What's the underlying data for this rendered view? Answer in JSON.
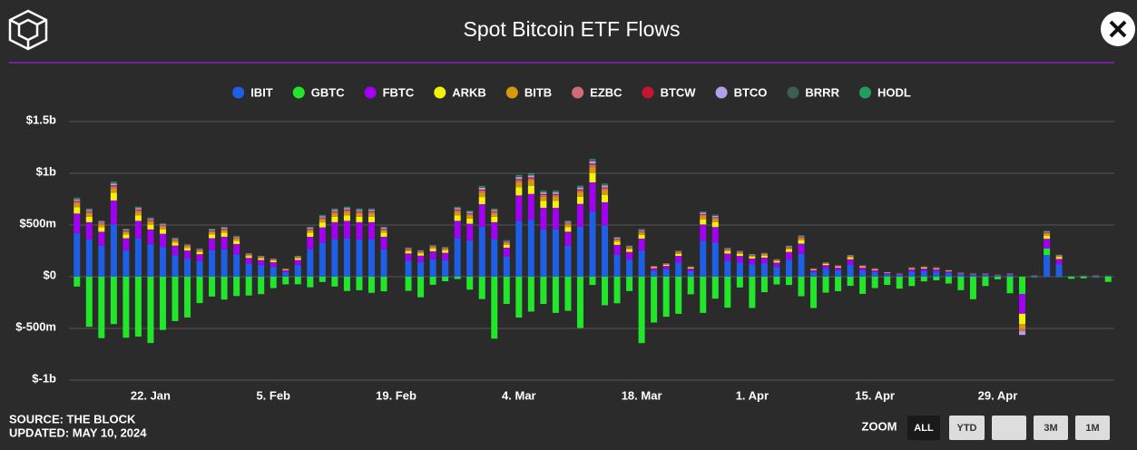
{
  "chart_data": {
    "type": "bar",
    "stacked": true,
    "title": "Spot Bitcoin ETF Flows",
    "categories": [
      null,
      null,
      null,
      null,
      null,
      null,
      "22. Jan",
      null,
      null,
      null,
      null,
      null,
      null,
      null,
      null,
      null,
      "5. Feb",
      null,
      null,
      null,
      null,
      null,
      null,
      null,
      null,
      null,
      "19. Feb",
      null,
      null,
      null,
      null,
      null,
      null,
      null,
      null,
      null,
      "4. Mar",
      null,
      null,
      null,
      null,
      null,
      null,
      null,
      null,
      null,
      "18. Mar",
      null,
      null,
      null,
      null,
      null,
      null,
      null,
      null,
      "1. Apr",
      null,
      null,
      null,
      null,
      null,
      null,
      null,
      null,
      null,
      "15. Apr",
      null,
      null,
      null,
      null,
      null,
      null,
      null,
      null,
      null,
      "29. Apr",
      null,
      null,
      null,
      null,
      null,
      null,
      null,
      null,
      null
    ],
    "ylim": [
      -1000,
      1500
    ],
    "yticks": [
      {
        "value": -1000,
        "label": "$-1b"
      },
      {
        "value": -500,
        "label": "$-500m"
      },
      {
        "value": 0,
        "label": "$0"
      },
      {
        "value": 500,
        "label": "$500m"
      },
      {
        "value": 1000,
        "label": "$1b"
      },
      {
        "value": 1500,
        "label": "$1.5b"
      }
    ],
    "grid": true,
    "series": [
      {
        "name": "IBIT",
        "color": "#1f5fe6",
        "values": [
          420,
          362,
          299,
          507,
          256,
          371,
          314,
          285,
          207,
          174,
          150,
          256,
          265,
          217,
          125,
          111,
          96,
          43,
          111,
          265,
          328,
          362,
          371,
          362,
          362,
          265,
          null,
          155,
          140,
          169,
          159,
          371,
          352,
          482,
          362,
          193,
          540,
          550,
          458,
          458,
          299,
          484,
          627,
          495,
          212,
          165,
          253,
          58,
          72,
          138,
          55,
          347,
          330,
          154,
          138,
          121,
          127,
          94,
          165,
          220,
          44,
          77,
          61,
          116,
          61,
          44,
          25,
          17,
          50,
          55,
          50,
          36,
          22,
          17,
          17,
          11,
          17,
          0,
          8,
          209,
          118,
          3,
          6,
          8,
          6
        ]
      },
      {
        "name": "GBTC",
        "color": "#22e62a",
        "values": [
          -95,
          -484,
          -594,
          -458,
          -590,
          -579,
          -641,
          -515,
          -429,
          -394,
          -255,
          -192,
          -221,
          -187,
          -182,
          -169,
          -110,
          -74,
          -73,
          -102,
          -51,
          -95,
          -138,
          -131,
          -156,
          -141,
          null,
          -137,
          -199,
          -78,
          -44,
          -22,
          -125,
          -216,
          -599,
          -263,
          -395,
          -337,
          -263,
          -350,
          -330,
          -495,
          -80,
          -276,
          -257,
          -139,
          -642,
          -443,
          -387,
          -359,
          -170,
          -350,
          -212,
          -299,
          -104,
          -302,
          -150,
          -75,
          -80,
          -189,
          -303,
          -154,
          -140,
          -88,
          -166,
          -110,
          -79,
          -115,
          -90,
          -45,
          -35,
          -66,
          -130,
          -218,
          -90,
          -25,
          -160,
          -167,
          -5,
          63,
          -2,
          -20,
          -15,
          -5,
          -50
        ]
      },
      {
        "name": "FBTC",
        "color": "#a100f2",
        "values": [
          191,
          165,
          136,
          230,
          116,
          169,
          143,
          130,
          94,
          79,
          68,
          116,
          121,
          99,
          57,
          51,
          44,
          20,
          51,
          121,
          149,
          165,
          169,
          165,
          165,
          121,
          null,
          70,
          64,
          77,
          72,
          169,
          160,
          219,
          165,
          88,
          246,
          250,
          208,
          208,
          136,
          220,
          285,
          225,
          96,
          75,
          115,
          26,
          33,
          63,
          25,
          158,
          150,
          70,
          63,
          55,
          58,
          43,
          75,
          100,
          20,
          35,
          28,
          53,
          28,
          20,
          11,
          8,
          23,
          25,
          23,
          16,
          10,
          8,
          8,
          5,
          8,
          -191,
          4,
          95,
          54,
          1,
          2,
          4,
          2
        ]
      },
      {
        "name": "ARKB",
        "color": "#f4f20c",
        "values": [
          61,
          53,
          44,
          74,
          37,
          54,
          46,
          41,
          30,
          25,
          22,
          37,
          39,
          32,
          18,
          16,
          14,
          6,
          16,
          39,
          48,
          53,
          54,
          53,
          53,
          39,
          null,
          22,
          20,
          25,
          23,
          54,
          51,
          70,
          53,
          28,
          79,
          80,
          67,
          67,
          44,
          70,
          91,
          72,
          31,
          24,
          37,
          8,
          10,
          20,
          8,
          50,
          48,
          22,
          20,
          18,
          18,
          14,
          24,
          32,
          6,
          11,
          9,
          17,
          9,
          6,
          4,
          2,
          7,
          8,
          7,
          5,
          3,
          2,
          2,
          2,
          2,
          -99,
          1,
          30,
          17,
          0,
          1,
          1,
          1
        ]
      },
      {
        "name": "BITB",
        "color": "#d8980c",
        "values": [
          38,
          33,
          27,
          46,
          23,
          34,
          29,
          26,
          19,
          16,
          14,
          23,
          24,
          20,
          11,
          10,
          9,
          4,
          10,
          24,
          30,
          33,
          34,
          33,
          33,
          24,
          null,
          14,
          13,
          15,
          14,
          34,
          32,
          44,
          33,
          18,
          49,
          50,
          42,
          42,
          27,
          44,
          57,
          45,
          19,
          15,
          23,
          5,
          7,
          13,
          5,
          32,
          30,
          14,
          13,
          11,
          12,
          9,
          15,
          20,
          4,
          7,
          6,
          11,
          6,
          4,
          2,
          2,
          5,
          5,
          5,
          3,
          2,
          2,
          2,
          1,
          2,
          -50,
          1,
          19,
          11,
          1,
          1,
          1,
          1
        ]
      },
      {
        "name": "EZBC",
        "color": "#cf6b78",
        "values": [
          15,
          13,
          11,
          18,
          9,
          14,
          11,
          10,
          8,
          6,
          5,
          9,
          10,
          8,
          5,
          4,
          4,
          2,
          4,
          10,
          12,
          13,
          14,
          13,
          13,
          10,
          null,
          6,
          5,
          6,
          6,
          14,
          13,
          18,
          13,
          7,
          20,
          20,
          17,
          17,
          11,
          18,
          23,
          18,
          8,
          6,
          9,
          2,
          3,
          5,
          2,
          13,
          12,
          6,
          5,
          4,
          5,
          3,
          6,
          8,
          2,
          3,
          2,
          4,
          2,
          2,
          1,
          1,
          2,
          2,
          2,
          1,
          1,
          1,
          1,
          0,
          1,
          -20,
          0,
          8,
          4,
          0,
          0,
          0,
          0
        ]
      },
      {
        "name": "BTCW",
        "color": "#c8142c",
        "values": [
          8,
          7,
          5,
          9,
          5,
          7,
          6,
          5,
          4,
          3,
          3,
          5,
          5,
          4,
          2,
          2,
          2,
          1,
          2,
          5,
          6,
          7,
          7,
          7,
          7,
          5,
          null,
          3,
          3,
          3,
          3,
          7,
          6,
          9,
          7,
          4,
          10,
          10,
          8,
          8,
          5,
          9,
          11,
          9,
          4,
          3,
          5,
          1,
          1,
          3,
          1,
          6,
          6,
          3,
          3,
          2,
          2,
          2,
          3,
          4,
          1,
          1,
          1,
          2,
          1,
          1,
          0,
          0,
          1,
          1,
          1,
          1,
          0,
          0,
          0,
          0,
          0,
          0,
          0,
          4,
          2,
          0,
          0,
          0,
          0
        ]
      },
      {
        "name": "BTCO",
        "color": "#b4a0e8",
        "values": [
          15,
          13,
          11,
          18,
          9,
          14,
          11,
          10,
          8,
          6,
          5,
          9,
          10,
          8,
          5,
          4,
          4,
          2,
          4,
          10,
          12,
          13,
          14,
          13,
          13,
          10,
          null,
          6,
          5,
          6,
          6,
          14,
          13,
          18,
          13,
          7,
          20,
          20,
          17,
          17,
          11,
          18,
          23,
          18,
          8,
          6,
          9,
          2,
          3,
          5,
          2,
          13,
          12,
          6,
          5,
          4,
          5,
          3,
          6,
          8,
          2,
          3,
          2,
          4,
          2,
          2,
          1,
          1,
          2,
          2,
          2,
          1,
          1,
          1,
          1,
          0,
          1,
          -36,
          0,
          8,
          4,
          0,
          0,
          0,
          0
        ]
      },
      {
        "name": "BRRR",
        "color": "#3e5f50",
        "values": [
          8,
          7,
          5,
          9,
          5,
          7,
          6,
          5,
          4,
          3,
          3,
          5,
          5,
          4,
          2,
          2,
          2,
          1,
          2,
          5,
          6,
          7,
          7,
          7,
          7,
          5,
          null,
          3,
          3,
          3,
          3,
          7,
          6,
          9,
          7,
          4,
          10,
          10,
          8,
          8,
          5,
          9,
          11,
          9,
          4,
          3,
          5,
          1,
          1,
          3,
          1,
          6,
          6,
          3,
          3,
          2,
          2,
          2,
          3,
          4,
          1,
          1,
          1,
          2,
          1,
          1,
          0,
          0,
          1,
          1,
          1,
          1,
          0,
          0,
          0,
          0,
          0,
          0,
          0,
          4,
          2,
          0,
          0,
          0,
          0
        ]
      },
      {
        "name": "HODL",
        "color": "#1f9e60",
        "values": [
          8,
          7,
          5,
          9,
          5,
          7,
          6,
          5,
          4,
          3,
          3,
          5,
          5,
          4,
          2,
          2,
          2,
          1,
          2,
          5,
          6,
          7,
          7,
          7,
          7,
          5,
          null,
          3,
          3,
          3,
          3,
          7,
          6,
          9,
          7,
          4,
          10,
          10,
          8,
          8,
          5,
          9,
          11,
          9,
          4,
          3,
          5,
          1,
          1,
          3,
          1,
          6,
          6,
          3,
          3,
          2,
          2,
          2,
          3,
          4,
          1,
          1,
          1,
          2,
          1,
          1,
          0,
          0,
          1,
          1,
          1,
          1,
          0,
          0,
          0,
          0,
          0,
          0,
          0,
          4,
          2,
          0,
          0,
          0,
          0
        ]
      }
    ]
  },
  "footer": {
    "source": "SOURCE: THE BLOCK",
    "updated": "UPDATED: MAY 10, 2024"
  },
  "zoom": {
    "label": "ZOOM",
    "buttons": [
      "ALL",
      "YTD",
      "3M",
      "1M"
    ]
  }
}
